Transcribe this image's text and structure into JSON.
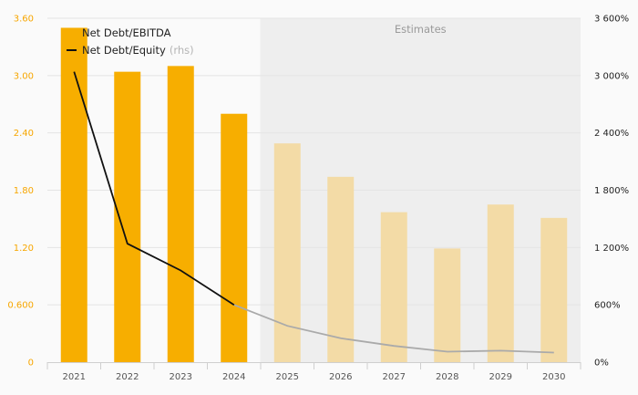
{
  "chart_data": {
    "type": "bar",
    "categories": [
      "2021",
      "2022",
      "2023",
      "2024",
      "2025",
      "2026",
      "2027",
      "2028",
      "2029",
      "2030"
    ],
    "series": [
      {
        "name": "Net Debt/EBITDA",
        "axis": "left",
        "type": "bar",
        "values": [
          3.5,
          3.04,
          3.1,
          2.6,
          2.29,
          1.94,
          1.57,
          1.19,
          1.65,
          1.51
        ],
        "estimated_from_index": 4,
        "color": "#f7ae00",
        "estimate_color": "#f3dba6"
      },
      {
        "name": "Net Debt/Equity",
        "name_suffix": "(rhs)",
        "axis": "right",
        "type": "line",
        "values": [
          3040,
          1240,
          960,
          600,
          380,
          250,
          170,
          110,
          120,
          100
        ],
        "estimated_from_index": 3,
        "color": "#111111",
        "estimate_color": "#aaaaaa"
      }
    ],
    "ylim_left": [
      0,
      3.6
    ],
    "ylim_right": [
      0,
      3600
    ],
    "left_ticks": [
      "0",
      "0.600",
      "1.20",
      "1.80",
      "2.40",
      "3.00",
      "3.60"
    ],
    "right_ticks": [
      "0%",
      "600%",
      "1 200%",
      "1 800%",
      "2 400%",
      "3 000%",
      "3 600%"
    ],
    "estimates_label": "Estimates",
    "estimates_start_index": 4,
    "legend_position": "top-left",
    "grid": true
  }
}
